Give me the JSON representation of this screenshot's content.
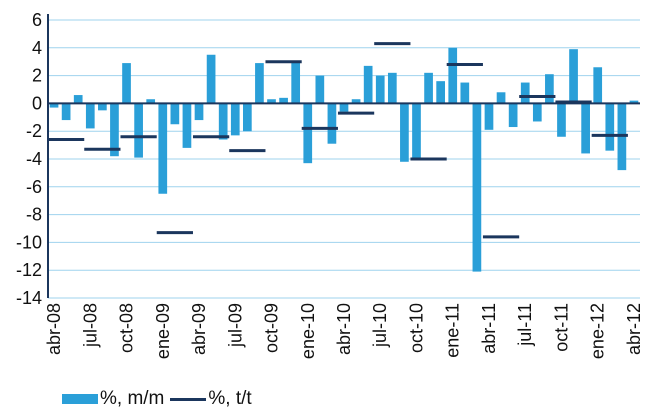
{
  "chart_data": {
    "type": "bar",
    "ylim": [
      -14,
      6
    ],
    "yticks": [
      6,
      4,
      2,
      0,
      -2,
      -4,
      -6,
      -8,
      -10,
      -12,
      -14
    ],
    "grid": true,
    "legend_position": "bottom-left",
    "months": [
      "abr-08",
      "may-08",
      "jun-08",
      "jul-08",
      "ago-08",
      "sep-08",
      "oct-08",
      "nov-08",
      "dic-08",
      "ene-09",
      "feb-09",
      "mar-09",
      "abr-09",
      "may-09",
      "jun-09",
      "jul-09",
      "ago-09",
      "sep-09",
      "oct-09",
      "nov-09",
      "dic-09",
      "ene-10",
      "feb-10",
      "mar-10",
      "abr-10",
      "may-10",
      "jun-10",
      "jul-10",
      "ago-10",
      "sep-10",
      "oct-10",
      "nov-10",
      "dic-10",
      "ene-11",
      "feb-11",
      "mar-11",
      "abr-11",
      "may-11",
      "jun-11",
      "jul-11",
      "ago-11",
      "sep-11",
      "oct-11",
      "nov-11",
      "dic-11",
      "ene-12",
      "feb-12",
      "mar-12",
      "abr-12"
    ],
    "x_tick_labels": [
      "abr-08",
      "jul-08",
      "oct-08",
      "ene-09",
      "abr-09",
      "jul-09",
      "oct-09",
      "ene-10",
      "abr-10",
      "jul-10",
      "oct-10",
      "ene-11",
      "abr-11",
      "jul-11",
      "oct-11",
      "ene-12",
      "abr-12"
    ],
    "series": [
      {
        "name": "%, m/m",
        "type": "bar",
        "color": "#2a9fd8",
        "values": [
          -0.3,
          -1.2,
          0.6,
          -1.8,
          -0.5,
          -3.8,
          2.9,
          -3.9,
          0.3,
          -6.5,
          -1.5,
          -3.2,
          -1.2,
          3.5,
          -2.6,
          -2.3,
          -2.0,
          2.9,
          0.3,
          0.4,
          3.0,
          -4.3,
          2.0,
          -2.9,
          -0.6,
          0.3,
          2.7,
          2.0,
          2.2,
          -4.2,
          -4.0,
          2.2,
          1.6,
          4.0,
          1.5,
          -12.1,
          -1.9,
          0.8,
          -1.7,
          1.5,
          -1.3,
          2.1,
          -2.4,
          3.9,
          -3.6,
          2.6,
          -3.4,
          -4.8,
          0.2
        ]
      },
      {
        "name": "%, t/t",
        "type": "line",
        "color": "#1b365d",
        "segments": [
          {
            "months": [
              "abr-08",
              "may-08",
              "jun-08"
            ],
            "value": -2.6
          },
          {
            "months": [
              "jul-08",
              "ago-08",
              "sep-08"
            ],
            "value": -3.3
          },
          {
            "months": [
              "oct-08",
              "nov-08",
              "dic-08"
            ],
            "value": -2.4
          },
          {
            "months": [
              "ene-09",
              "feb-09",
              "mar-09"
            ],
            "value": -9.3
          },
          {
            "months": [
              "abr-09",
              "may-09",
              "jun-09"
            ],
            "value": -2.4
          },
          {
            "months": [
              "jul-09",
              "ago-09",
              "sep-09"
            ],
            "value": -3.4
          },
          {
            "months": [
              "oct-09",
              "nov-09",
              "dic-09"
            ],
            "value": 3.0
          },
          {
            "months": [
              "ene-10",
              "feb-10",
              "mar-10"
            ],
            "value": -1.8
          },
          {
            "months": [
              "abr-10",
              "may-10",
              "jun-10"
            ],
            "value": -0.7
          },
          {
            "months": [
              "jul-10",
              "ago-10",
              "sep-10"
            ],
            "value": 4.3
          },
          {
            "months": [
              "oct-10",
              "nov-10",
              "dic-10"
            ],
            "value": -4.0
          },
          {
            "months": [
              "ene-11",
              "feb-11",
              "mar-11"
            ],
            "value": 2.8
          },
          {
            "months": [
              "abr-11",
              "may-11",
              "jun-11"
            ],
            "value": -9.6
          },
          {
            "months": [
              "jul-11",
              "ago-11",
              "sep-11"
            ],
            "value": 0.5
          },
          {
            "months": [
              "oct-11",
              "nov-11",
              "dic-11"
            ],
            "value": 0.1
          },
          {
            "months": [
              "ene-12",
              "feb-12",
              "mar-12"
            ],
            "value": -2.3
          }
        ]
      }
    ]
  },
  "legend": {
    "bar_label": "%, m/m",
    "line_label": "%, t/t",
    "bar_color": "#2a9fd8",
    "line_color": "#1b365d"
  }
}
